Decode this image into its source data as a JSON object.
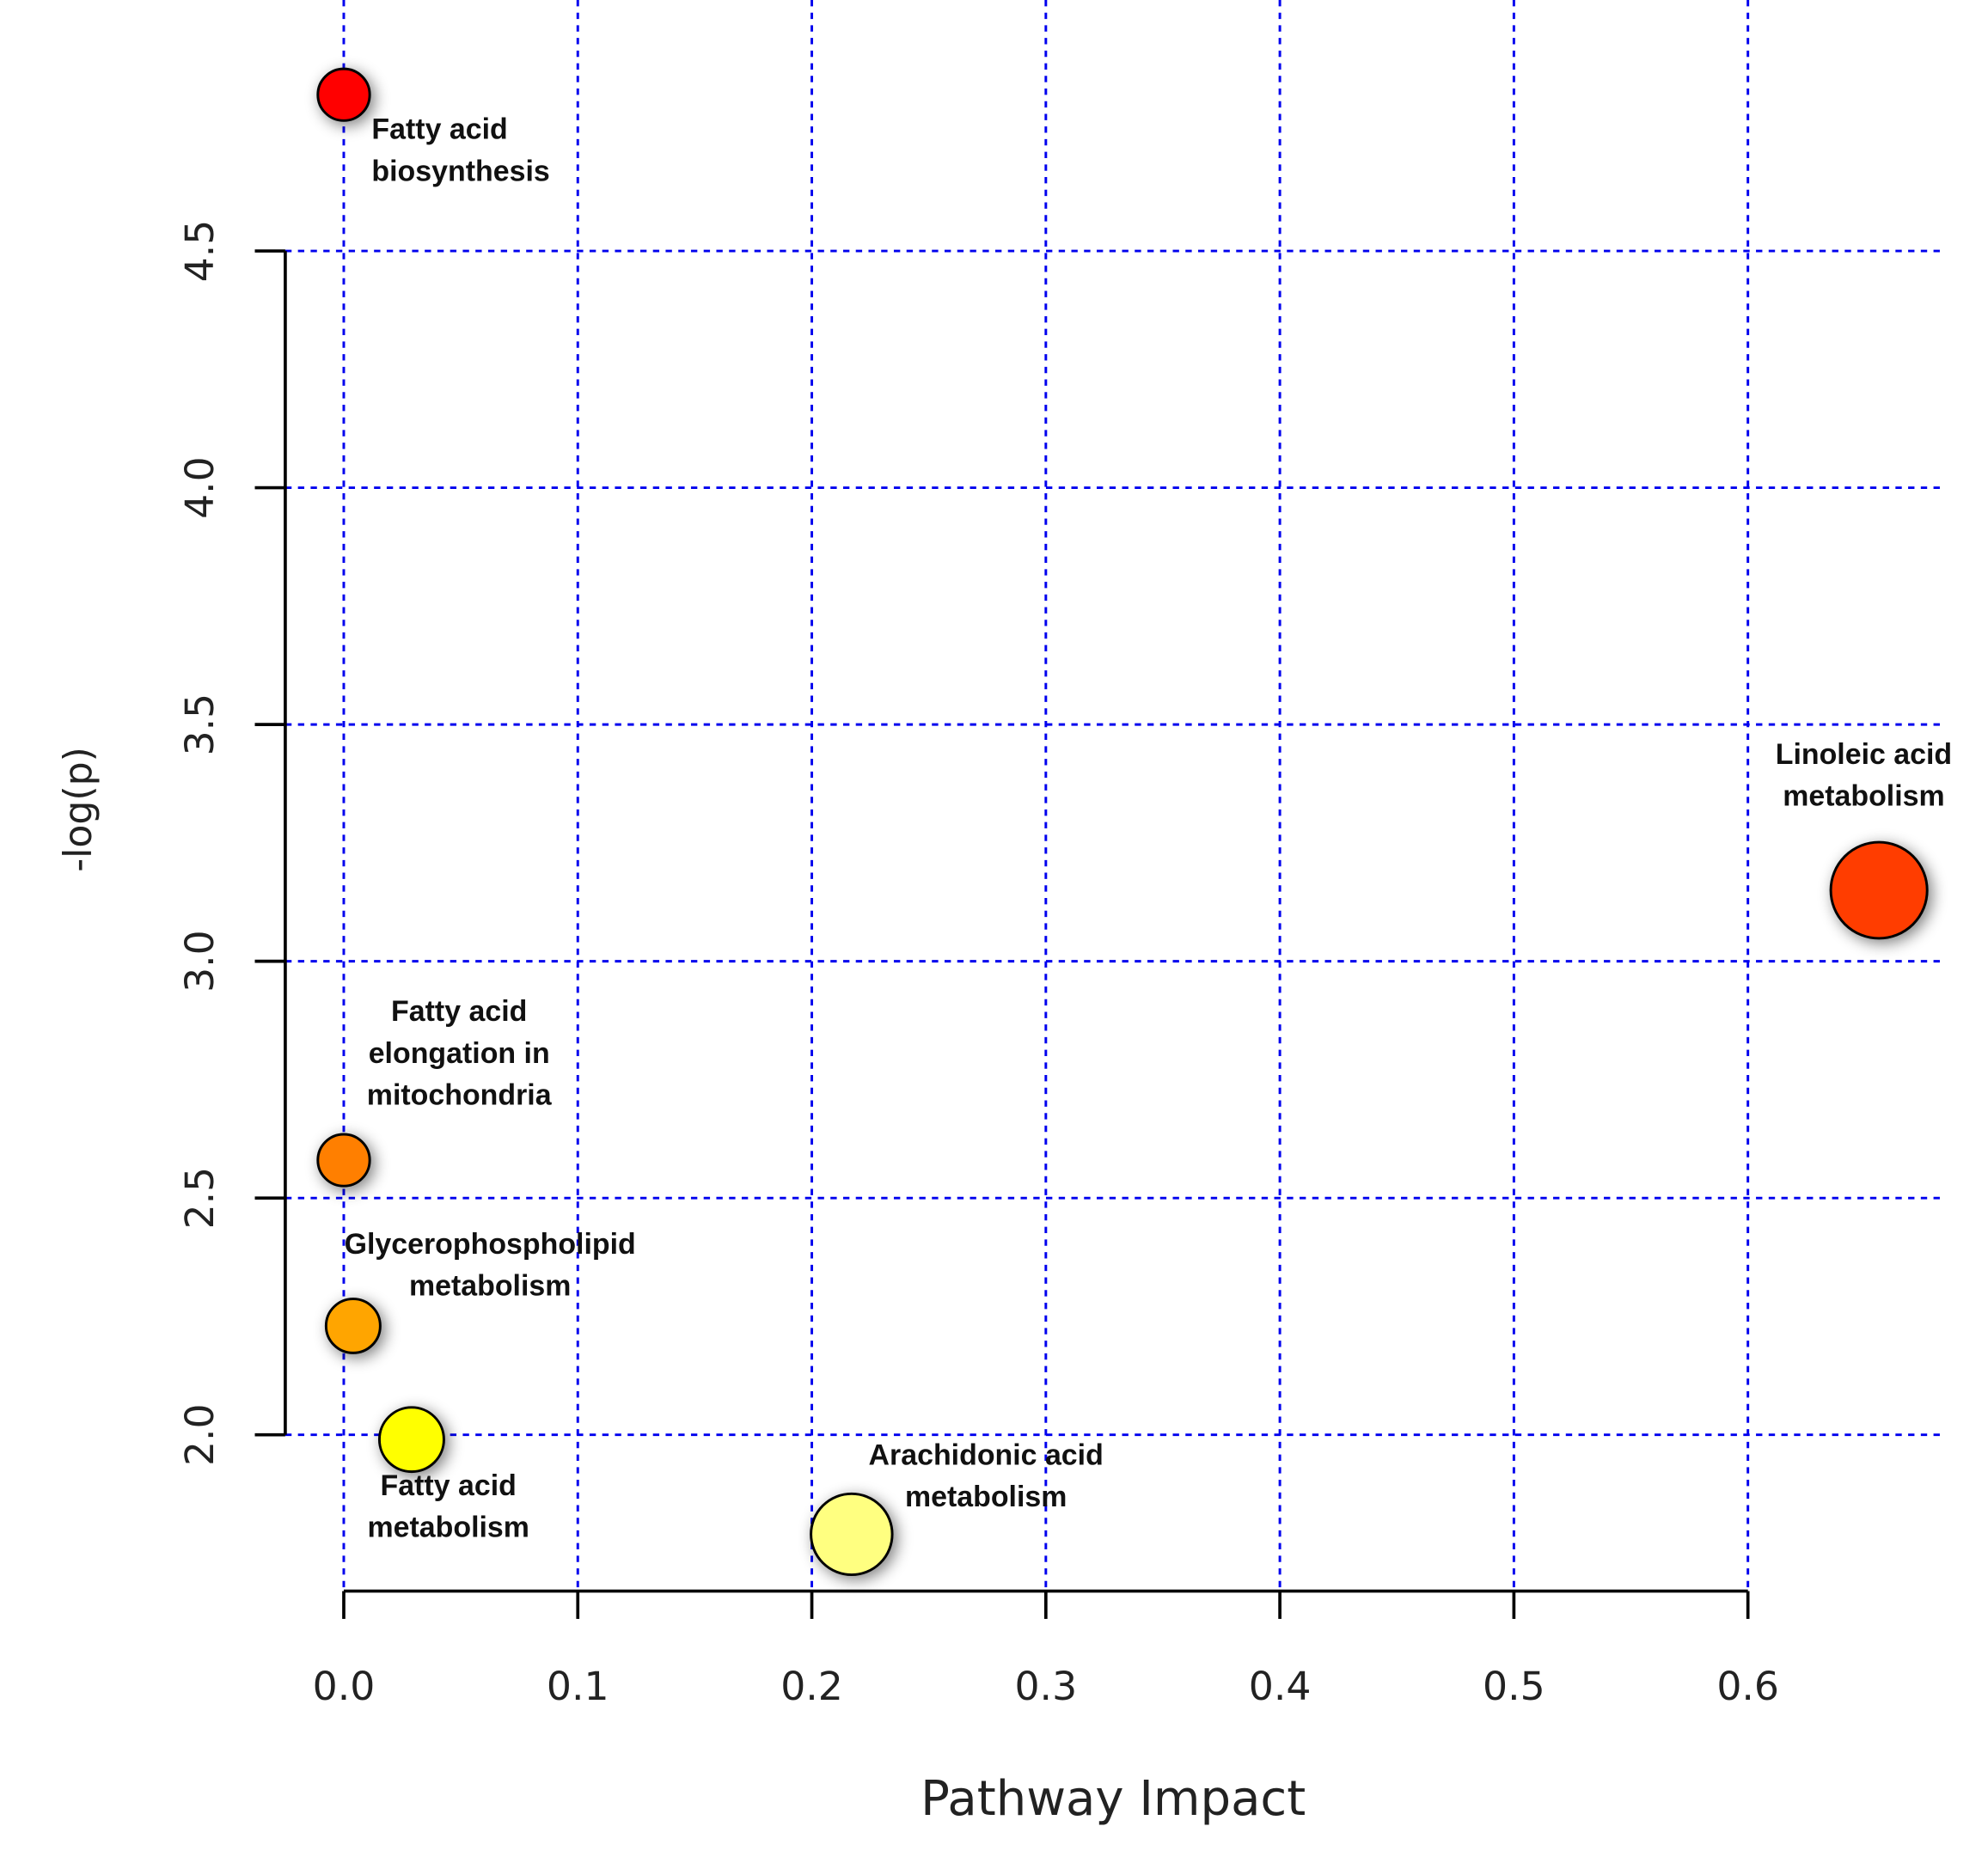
{
  "chart_data": {
    "type": "bubble",
    "xlabel": "Pathway Impact",
    "ylabel": "-log(p)",
    "x": [
      0,
      0.656,
      0,
      0.004,
      0.029,
      0.217
    ],
    "values": [
      4.83,
      3.15,
      2.58,
      2.23,
      1.99,
      1.79
    ],
    "sizes": [
      11,
      38,
      11,
      12,
      17,
      27
    ],
    "colors": [
      "#ff0000",
      "#ff3c00",
      "#ff7f00",
      "#ffa500",
      "#ffff00",
      "#ffff80"
    ],
    "labels": [
      [
        "Fatty acid",
        "biosynthesis"
      ],
      [
        "Linoleic acid",
        "metabolism"
      ],
      [
        "Fatty acid",
        "elongation in",
        "mitochondria"
      ],
      [
        "Glycerophospholipid",
        "metabolism"
      ],
      [
        "Fatty acid",
        "metabolism"
      ],
      [
        "Arachidonic acid",
        "metabolism"
      ]
    ],
    "xlim": [
      -0.025,
      0.682
    ],
    "ylim": [
      1.67,
      5.03
    ],
    "xticks": [
      {
        "value": 0,
        "label": "0.0"
      },
      0.1,
      0.2,
      0.3,
      0.4,
      0.5,
      0.6
    ],
    "yticks": [
      {
        "value": 2,
        "label": "2.0"
      },
      2.5,
      {
        "value": 3,
        "label": "3.0"
      },
      3.5,
      {
        "value": 4,
        "label": "4.0"
      },
      4.5
    ],
    "grid": true,
    "grid_color": "#0000ee"
  }
}
